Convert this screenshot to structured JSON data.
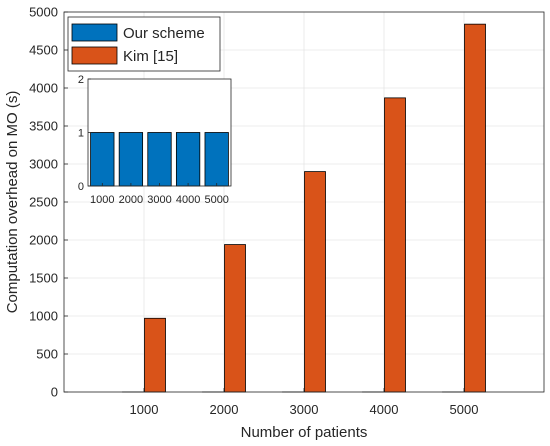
{
  "chart_data": [
    {
      "type": "bar",
      "title": "",
      "xlabel": "Number of patients",
      "ylabel": "Computation overhead on MO (s)",
      "categories": [
        "1000",
        "2000",
        "3000",
        "4000",
        "5000"
      ],
      "ylim": [
        0,
        5000
      ],
      "yticks": [
        "0",
        "500",
        "1000",
        "1500",
        "2000",
        "2500",
        "3000",
        "3500",
        "4000",
        "4500",
        "5000"
      ],
      "grid": true,
      "legend_position": "top-left",
      "series": [
        {
          "name": "Our scheme",
          "color": "#0072BD",
          "values": [
            1,
            1,
            1,
            1,
            1
          ]
        },
        {
          "name": "Kim [15]",
          "color": "#D95319",
          "values": [
            970,
            1940,
            2900,
            3870,
            4840
          ]
        }
      ]
    },
    {
      "type": "bar",
      "title": "",
      "xlabel": "",
      "ylabel": "",
      "categories": [
        "1000",
        "2000",
        "3000",
        "4000",
        "5000"
      ],
      "ylim": [
        0,
        2
      ],
      "yticks": [
        "0",
        "1",
        "2"
      ],
      "grid": false,
      "series": [
        {
          "name": "Our scheme",
          "color": "#0072BD",
          "values": [
            1,
            1,
            1,
            1,
            1
          ]
        }
      ]
    }
  ]
}
